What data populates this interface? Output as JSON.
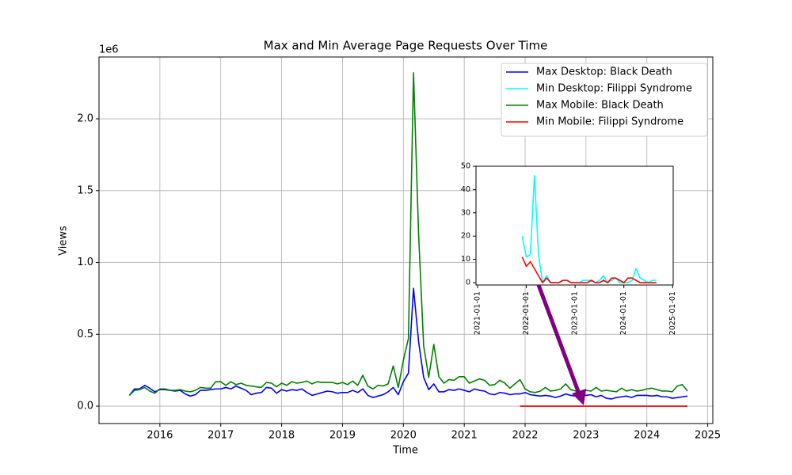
{
  "chart_data": [
    {
      "type": "line",
      "title": "Max and Min Average Page Requests Over Time",
      "x_label": "Time",
      "y_label": "Views",
      "y_offset_label": "1e6",
      "grid": true,
      "legend": "upper right",
      "xlim": [
        "2015-01",
        "2025-02"
      ],
      "xticks": [
        "2016",
        "2017",
        "2018",
        "2019",
        "2020",
        "2021",
        "2022",
        "2023",
        "2024",
        "2025"
      ],
      "ylim": [
        -121000,
        2430000
      ],
      "yticks": [
        {
          "value": 0,
          "label": "0.0"
        },
        {
          "value": 500000,
          "label": "0.5"
        },
        {
          "value": 1000000,
          "label": "1.0"
        },
        {
          "value": 1500000,
          "label": "1.5"
        },
        {
          "value": 2000000,
          "label": "2.0"
        }
      ],
      "x": [
        "2015-07",
        "2015-08",
        "2015-09",
        "2015-10",
        "2015-11",
        "2015-12",
        "2016-01",
        "2016-02",
        "2016-03",
        "2016-04",
        "2016-05",
        "2016-06",
        "2016-07",
        "2016-08",
        "2016-09",
        "2016-10",
        "2016-11",
        "2016-12",
        "2017-01",
        "2017-02",
        "2017-03",
        "2017-04",
        "2017-05",
        "2017-06",
        "2017-07",
        "2017-08",
        "2017-09",
        "2017-10",
        "2017-11",
        "2017-12",
        "2018-01",
        "2018-02",
        "2018-03",
        "2018-04",
        "2018-05",
        "2018-06",
        "2018-07",
        "2018-08",
        "2018-09",
        "2018-10",
        "2018-11",
        "2018-12",
        "2019-01",
        "2019-02",
        "2019-03",
        "2019-04",
        "2019-05",
        "2019-06",
        "2019-07",
        "2019-08",
        "2019-09",
        "2019-10",
        "2019-11",
        "2019-12",
        "2020-01",
        "2020-02",
        "2020-03",
        "2020-04",
        "2020-05",
        "2020-06",
        "2020-07",
        "2020-08",
        "2020-09",
        "2020-10",
        "2020-11",
        "2020-12",
        "2021-01",
        "2021-02",
        "2021-03",
        "2021-04",
        "2021-05",
        "2021-06",
        "2021-07",
        "2021-08",
        "2021-09",
        "2021-10",
        "2021-11",
        "2021-12",
        "2022-01",
        "2022-02",
        "2022-03",
        "2022-04",
        "2022-05",
        "2022-06",
        "2022-07",
        "2022-08",
        "2022-09",
        "2022-10",
        "2022-11",
        "2022-12",
        "2023-01",
        "2023-02",
        "2023-03",
        "2023-04",
        "2023-05",
        "2023-06",
        "2023-07",
        "2023-08",
        "2023-09",
        "2023-10",
        "2023-11",
        "2023-12",
        "2024-01",
        "2024-02",
        "2024-03",
        "2024-04",
        "2024-05",
        "2024-06",
        "2024-07",
        "2024-08",
        "2024-09"
      ],
      "series": [
        {
          "name": "Max Desktop: Black Death",
          "color": "#0000ff",
          "values": [
            75000,
            120000,
            120000,
            145000,
            125000,
            100000,
            115000,
            115000,
            110000,
            105000,
            110000,
            85000,
            70000,
            80000,
            110000,
            110000,
            115000,
            120000,
            120000,
            130000,
            120000,
            140000,
            125000,
            110000,
            80000,
            90000,
            95000,
            130000,
            125000,
            90000,
            115000,
            105000,
            115000,
            110000,
            120000,
            95000,
            75000,
            85000,
            95000,
            105000,
            100000,
            90000,
            95000,
            95000,
            110000,
            95000,
            120000,
            75000,
            60000,
            70000,
            80000,
            100000,
            130000,
            80000,
            170000,
            230000,
            820000,
            450000,
            200000,
            115000,
            155000,
            100000,
            100000,
            115000,
            110000,
            120000,
            110000,
            100000,
            120000,
            110000,
            105000,
            85000,
            80000,
            95000,
            90000,
            80000,
            85000,
            85000,
            95000,
            80000,
            75000,
            70000,
            75000,
            70000,
            60000,
            70000,
            85000,
            75000,
            70000,
            80000,
            75000,
            80000,
            65000,
            75000,
            55000,
            50000,
            60000,
            65000,
            70000,
            60000,
            75000,
            75000,
            75000,
            70000,
            75000,
            65000,
            65000,
            55000,
            60000,
            65000,
            70000
          ]
        },
        {
          "name": "Min Desktop: Filippi Syndrome",
          "color": "#00ffff",
          "values": [
            null,
            null,
            null,
            null,
            null,
            null,
            null,
            null,
            null,
            null,
            null,
            null,
            null,
            null,
            null,
            null,
            null,
            null,
            null,
            null,
            null,
            null,
            null,
            null,
            null,
            null,
            null,
            null,
            null,
            null,
            null,
            null,
            null,
            null,
            null,
            null,
            null,
            null,
            null,
            null,
            null,
            null,
            null,
            null,
            null,
            null,
            null,
            null,
            null,
            null,
            null,
            null,
            null,
            null,
            null,
            null,
            null,
            null,
            null,
            null,
            null,
            null,
            null,
            null,
            null,
            null,
            null,
            null,
            null,
            null,
            null,
            null,
            null,
            null,
            null,
            null,
            null,
            20,
            11,
            12,
            46,
            12,
            0,
            3,
            0,
            0,
            0,
            1,
            1,
            0,
            0,
            0,
            1,
            1,
            1,
            0,
            1,
            3,
            0,
            1,
            2,
            0,
            0,
            0,
            1,
            6,
            2,
            1,
            0,
            1,
            1
          ]
        },
        {
          "name": "Max Mobile: Black Death",
          "color": "#008000",
          "values": [
            75000,
            110000,
            115000,
            130000,
            105000,
            90000,
            120000,
            120000,
            110000,
            110000,
            115000,
            105000,
            100000,
            110000,
            130000,
            125000,
            125000,
            170000,
            170000,
            145000,
            170000,
            150000,
            160000,
            145000,
            140000,
            135000,
            130000,
            165000,
            160000,
            135000,
            160000,
            145000,
            170000,
            160000,
            165000,
            175000,
            155000,
            170000,
            165000,
            165000,
            165000,
            155000,
            165000,
            150000,
            175000,
            145000,
            215000,
            140000,
            120000,
            145000,
            140000,
            155000,
            280000,
            130000,
            320000,
            470000,
            2320000,
            1200000,
            420000,
            200000,
            430000,
            205000,
            160000,
            185000,
            180000,
            205000,
            205000,
            160000,
            175000,
            190000,
            180000,
            145000,
            150000,
            180000,
            160000,
            125000,
            155000,
            185000,
            120000,
            100000,
            95000,
            105000,
            130000,
            105000,
            110000,
            120000,
            155000,
            115000,
            105000,
            95000,
            110000,
            105000,
            130000,
            105000,
            110000,
            105000,
            100000,
            125000,
            105000,
            115000,
            105000,
            110000,
            120000,
            125000,
            115000,
            105000,
            105000,
            100000,
            140000,
            150000,
            105000
          ]
        },
        {
          "name": "Min Mobile: Filippi Syndrome",
          "color": "#ff0000",
          "values": [
            null,
            null,
            null,
            null,
            null,
            null,
            null,
            null,
            null,
            null,
            null,
            null,
            null,
            null,
            null,
            null,
            null,
            null,
            null,
            null,
            null,
            null,
            null,
            null,
            null,
            null,
            null,
            null,
            null,
            null,
            null,
            null,
            null,
            null,
            null,
            null,
            null,
            null,
            null,
            null,
            null,
            null,
            null,
            null,
            null,
            null,
            null,
            null,
            null,
            null,
            null,
            null,
            null,
            null,
            null,
            null,
            null,
            null,
            null,
            null,
            null,
            null,
            null,
            null,
            null,
            null,
            null,
            null,
            null,
            null,
            null,
            null,
            null,
            null,
            null,
            null,
            null,
            11,
            7,
            9,
            6,
            3,
            0,
            2,
            0,
            0,
            0,
            1,
            1,
            0,
            0,
            0,
            0,
            0,
            1,
            0,
            0,
            1,
            0,
            2,
            2,
            1,
            0,
            2,
            2,
            1,
            0,
            0,
            0,
            0,
            0
          ]
        }
      ]
    },
    {
      "type": "line",
      "grid": false,
      "xlim": [
        "2020-12-20",
        "2025-01-05"
      ],
      "xticks": [
        "2021-01-01",
        "2022-01-01",
        "2023-01-01",
        "2024-01-01",
        "2025-01-01"
      ],
      "ylim": [
        -1,
        50
      ],
      "yticks": [
        0,
        10,
        20,
        30,
        40,
        50
      ],
      "x": [
        "2021-12-01",
        "2022-01-01",
        "2022-02-01",
        "2022-03-01",
        "2022-04-01",
        "2022-05-01",
        "2022-06-01",
        "2022-07-01",
        "2022-08-01",
        "2022-09-01",
        "2022-10-01",
        "2022-11-01",
        "2022-12-01",
        "2023-01-01",
        "2023-02-01",
        "2023-03-01",
        "2023-04-01",
        "2023-05-01",
        "2023-06-01",
        "2023-07-01",
        "2023-08-01",
        "2023-09-01",
        "2023-10-01",
        "2023-11-01",
        "2023-12-01",
        "2024-01-01",
        "2024-02-01",
        "2024-03-01",
        "2024-04-01",
        "2024-05-01",
        "2024-06-01",
        "2024-07-01",
        "2024-08-01",
        "2024-09-01"
      ],
      "series": [
        {
          "name": "Min Desktop: Filippi Syndrome",
          "color": "#00ffff",
          "values": [
            20,
            11,
            12,
            46,
            12,
            0,
            3,
            0,
            0,
            0,
            1,
            1,
            0,
            0,
            0,
            1,
            1,
            1,
            0,
            1,
            3,
            0,
            1,
            2,
            0,
            0,
            0,
            1,
            6,
            2,
            1,
            0,
            1,
            1
          ]
        },
        {
          "name": "Min Mobile: Filippi Syndrome",
          "color": "#ff0000",
          "values": [
            11,
            7,
            9,
            6,
            3,
            0,
            2,
            0,
            0,
            0,
            1,
            1,
            0,
            0,
            0,
            0,
            0,
            1,
            0,
            0,
            1,
            0,
            2,
            2,
            1,
            0,
            2,
            2,
            1,
            0,
            0,
            0,
            0,
            0
          ]
        }
      ]
    }
  ]
}
